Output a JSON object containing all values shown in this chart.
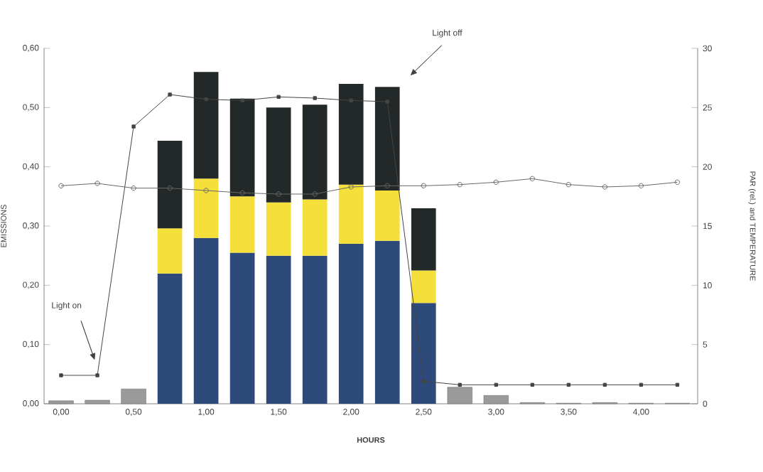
{
  "chart_data": {
    "type": "bar",
    "stacked": true,
    "xlabel": "HOURS",
    "ylabel": "EMISSIONS",
    "y2label": "PAR (rel.) and TEMPERATURE",
    "categories": [
      "0,00",
      null,
      "0,50",
      null,
      "1,00",
      null,
      "1,50",
      null,
      "2,00",
      null,
      "2,50",
      null,
      "3,00",
      null,
      "3,50",
      null,
      "4,00",
      null
    ],
    "series": [
      {
        "color": "#2e4a7a",
        "values": [
          null,
          null,
          null,
          0.22,
          0.28,
          0.255,
          0.25,
          0.25,
          0.27,
          0.275,
          0.17,
          null,
          null,
          null,
          null,
          null,
          null,
          null
        ]
      },
      {
        "color": "#f5df3a",
        "values": [
          null,
          null,
          null,
          0.076,
          0.1,
          0.095,
          0.09,
          0.095,
          0.1,
          0.085,
          0.055,
          null,
          null,
          null,
          null,
          null,
          null,
          null
        ]
      },
      {
        "color": "#232828",
        "values": [
          null,
          null,
          null,
          0.148,
          0.18,
          0.165,
          0.16,
          0.16,
          0.17,
          0.175,
          0.105,
          null,
          null,
          null,
          null,
          null,
          null,
          null
        ]
      },
      {
        "color": "#9a9a9a",
        "values": [
          0.005,
          0.006,
          0.025,
          null,
          null,
          null,
          null,
          null,
          null,
          null,
          null,
          0.028,
          0.014,
          0.002,
          0.001,
          0.002,
          0.001,
          0.001
        ]
      },
      {
        "type": "line",
        "axis": "y2",
        "marker": "square",
        "color": "#444444",
        "values": [
          2.4,
          2.4,
          23.4,
          26.1,
          25.7,
          25.6,
          25.9,
          25.8,
          25.6,
          25.5,
          1.9,
          1.6,
          1.6,
          1.6,
          1.6,
          1.6,
          1.6,
          1.6
        ]
      },
      {
        "type": "line",
        "axis": "y2",
        "marker": "circle",
        "color": "#666666",
        "values": [
          18.4,
          18.6,
          18.2,
          18.2,
          18.0,
          17.8,
          17.7,
          17.7,
          18.3,
          18.4,
          18.4,
          18.5,
          18.7,
          19.0,
          18.5,
          18.3,
          18.4,
          18.7
        ]
      }
    ],
    "ylim": [
      0,
      0.6
    ],
    "yticks": [
      {
        "value": 0,
        "label": "0,00"
      },
      {
        "value": 0.1,
        "label": "0,10"
      },
      {
        "value": 0.2,
        "label": "0,20"
      },
      {
        "value": 0.3,
        "label": "0,30"
      },
      {
        "value": 0.4,
        "label": "0,40"
      },
      {
        "value": 0.5,
        "label": "0,50"
      },
      {
        "value": 0.6,
        "label": "0,60"
      }
    ],
    "y2lim": [
      0,
      30
    ],
    "y2ticks": [
      0,
      5,
      10,
      15,
      20,
      25,
      30
    ],
    "annotations": [
      "Light on",
      "Light off"
    ]
  }
}
